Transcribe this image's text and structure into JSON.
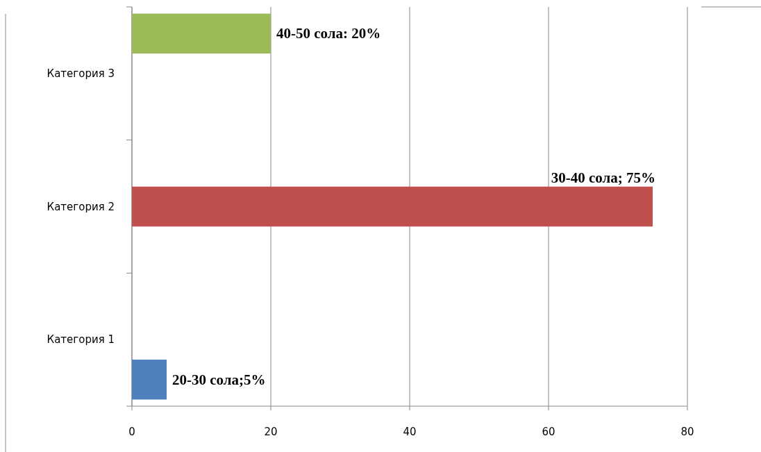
{
  "chart_data": {
    "type": "bar",
    "orientation": "horizontal",
    "categories": [
      "Категория 3",
      "Категория 2",
      "Категория 1"
    ],
    "series": [
      {
        "color": "#4f81bd",
        "values": [
          null,
          null,
          5
        ],
        "value_labels": [
          null,
          null,
          "20-30 сола;5%"
        ]
      },
      {
        "color": "#c0504d",
        "values": [
          null,
          75,
          null
        ],
        "value_labels": [
          null,
          "30-40 сола; 75%",
          null
        ]
      },
      {
        "color": "#9bbb59",
        "values": [
          20,
          null,
          null
        ],
        "value_labels": [
          "40-50 сола: 20%",
          null,
          null
        ]
      }
    ],
    "xlim": [
      0,
      80
    ],
    "xticks": [
      0,
      20,
      40,
      60,
      80
    ],
    "grid": "x"
  }
}
